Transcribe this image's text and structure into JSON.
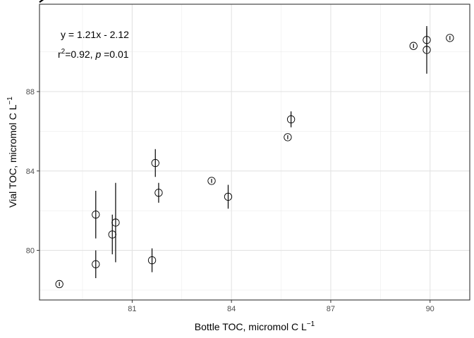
{
  "chart_data": {
    "type": "scatter",
    "xlabel": "Bottle TOC, micromol C L",
    "xlabel_sup": "−1",
    "ylabel": "Vial TOC, micromol C L",
    "ylabel_sup": "−1",
    "xlim": [
      78.2,
      91.2
    ],
    "ylim": [
      77.5,
      92.4
    ],
    "x_ticks": [
      81,
      84,
      87,
      90
    ],
    "y_ticks": [
      80,
      84,
      88
    ],
    "grid": true,
    "points": [
      {
        "x": 78.8,
        "y": 78.3,
        "yerr_low": 78.2,
        "yerr_high": 78.4
      },
      {
        "x": 79.9,
        "y": 79.3,
        "yerr_low": 78.6,
        "yerr_high": 80.0
      },
      {
        "x": 79.9,
        "y": 81.8,
        "yerr_low": 80.6,
        "yerr_high": 83.0
      },
      {
        "x": 80.4,
        "y": 80.8,
        "yerr_low": 79.8,
        "yerr_high": 81.8
      },
      {
        "x": 80.5,
        "y": 81.4,
        "yerr_low": 79.4,
        "yerr_high": 83.4
      },
      {
        "x": 81.6,
        "y": 79.5,
        "yerr_low": 78.9,
        "yerr_high": 80.1
      },
      {
        "x": 81.7,
        "y": 84.4,
        "yerr_low": 83.7,
        "yerr_high": 85.1
      },
      {
        "x": 81.8,
        "y": 82.9,
        "yerr_low": 82.4,
        "yerr_high": 83.4
      },
      {
        "x": 83.4,
        "y": 83.5,
        "yerr_low": 83.4,
        "yerr_high": 83.6
      },
      {
        "x": 83.9,
        "y": 82.7,
        "yerr_low": 82.1,
        "yerr_high": 83.3
      },
      {
        "x": 85.7,
        "y": 85.7,
        "yerr_low": 85.6,
        "yerr_high": 85.8
      },
      {
        "x": 85.8,
        "y": 86.6,
        "yerr_low": 86.2,
        "yerr_high": 87.0
      },
      {
        "x": 89.5,
        "y": 90.3,
        "yerr_low": 90.2,
        "yerr_high": 90.4
      },
      {
        "x": 89.9,
        "y": 90.6,
        "yerr_low": 90.0,
        "yerr_high": 91.2
      },
      {
        "x": 89.9,
        "y": 90.1,
        "yerr_low": 88.9,
        "yerr_high": 91.3
      },
      {
        "x": 90.6,
        "y": 90.7,
        "yerr_low": 90.6,
        "yerr_high": 90.8
      }
    ],
    "fit_line": {
      "slope": 1.21,
      "intercept": -2.12,
      "style": "dashed"
    },
    "annotations": {
      "equation": "y = 1.21x - 2.12",
      "r_prefix": "r",
      "r_sup": "2",
      "r_value": "=0.92, ",
      "p_symbol": "p",
      "p_value": " =0.01"
    }
  }
}
